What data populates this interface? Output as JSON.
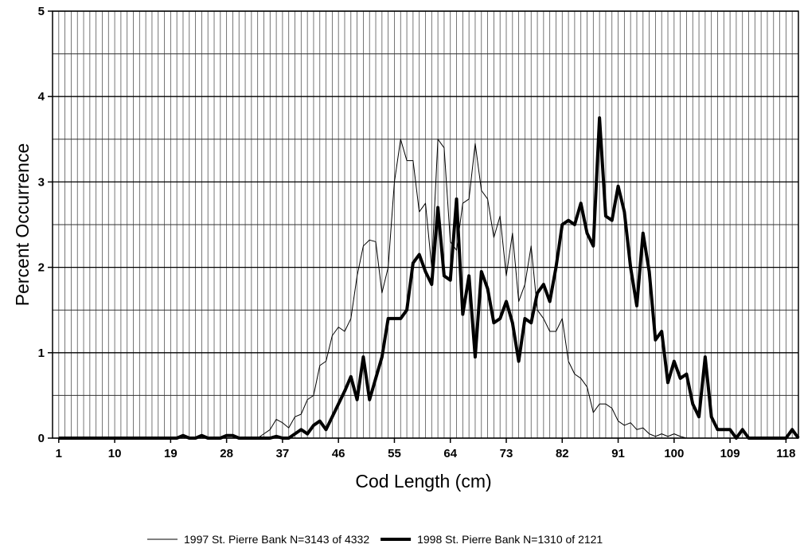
{
  "chart_data": {
    "type": "line",
    "xlabel": "Cod Length (cm)",
    "ylabel": "Percent Occurrence",
    "x": [
      1,
      2,
      3,
      4,
      5,
      6,
      7,
      8,
      9,
      10,
      11,
      12,
      13,
      14,
      15,
      16,
      17,
      18,
      19,
      20,
      21,
      22,
      23,
      24,
      25,
      26,
      27,
      28,
      29,
      30,
      31,
      32,
      33,
      34,
      35,
      36,
      37,
      38,
      39,
      40,
      41,
      42,
      43,
      44,
      45,
      46,
      47,
      48,
      49,
      50,
      51,
      52,
      53,
      54,
      55,
      56,
      57,
      58,
      59,
      60,
      61,
      62,
      63,
      64,
      65,
      66,
      67,
      68,
      69,
      70,
      71,
      72,
      73,
      74,
      75,
      76,
      77,
      78,
      79,
      80,
      81,
      82,
      83,
      84,
      85,
      86,
      87,
      88,
      89,
      90,
      91,
      92,
      93,
      94,
      95,
      96,
      97,
      98,
      99,
      100,
      101,
      102,
      103,
      104,
      105,
      106,
      107,
      108,
      109,
      110,
      111,
      112,
      113,
      114,
      115,
      116,
      117,
      118,
      119,
      120
    ],
    "series": [
      {
        "name": "1997 St. Pierre Bank N=3143 of 4332",
        "color": "#000000",
        "width": 1,
        "values": [
          0,
          0,
          0,
          0,
          0,
          0,
          0,
          0,
          0,
          0,
          0,
          0,
          0,
          0,
          0,
          0,
          0,
          0,
          0,
          0,
          0,
          0,
          0,
          0,
          0,
          0,
          0,
          0,
          0,
          0,
          0,
          0,
          0,
          0.05,
          0.1,
          0.22,
          0.18,
          0.12,
          0.25,
          0.28,
          0.45,
          0.5,
          0.85,
          0.9,
          1.2,
          1.3,
          1.25,
          1.4,
          1.9,
          2.25,
          2.32,
          2.3,
          1.7,
          2.0,
          3.0,
          3.5,
          3.25,
          3.25,
          2.65,
          2.75,
          2.0,
          3.5,
          3.4,
          2.3,
          2.2,
          2.75,
          2.8,
          3.45,
          2.9,
          2.8,
          2.35,
          2.6,
          1.9,
          2.4,
          1.6,
          1.8,
          2.25,
          1.5,
          1.4,
          1.25,
          1.25,
          1.4,
          0.9,
          0.75,
          0.7,
          0.6,
          0.3,
          0.4,
          0.4,
          0.35,
          0.2,
          0.15,
          0.18,
          0.1,
          0.12,
          0.05,
          0.02,
          0.05,
          0.02,
          0.05,
          0.02,
          0,
          0,
          0,
          0,
          0,
          0,
          0,
          0,
          0,
          0,
          0,
          0,
          0,
          0,
          0,
          0,
          0,
          0,
          0
        ]
      },
      {
        "name": "1998 St. Pierre Bank N=1310 of 2121",
        "color": "#000000",
        "width": 4,
        "values": [
          0,
          0,
          0,
          0,
          0,
          0,
          0,
          0,
          0,
          0,
          0,
          0,
          0,
          0,
          0,
          0,
          0,
          0,
          0,
          0,
          0.03,
          0,
          0,
          0.03,
          0,
          0,
          0,
          0.03,
          0.03,
          0,
          0,
          0,
          0,
          0,
          0,
          0.02,
          0,
          0,
          0.05,
          0.1,
          0.05,
          0.15,
          0.2,
          0.1,
          0.25,
          0.4,
          0.55,
          0.72,
          0.45,
          0.95,
          0.45,
          0.7,
          0.95,
          1.4,
          1.4,
          1.4,
          1.5,
          2.05,
          2.15,
          1.95,
          1.8,
          2.7,
          1.9,
          1.85,
          2.8,
          1.45,
          1.9,
          0.95,
          1.95,
          1.75,
          1.35,
          1.4,
          1.6,
          1.35,
          0.9,
          1.4,
          1.35,
          1.7,
          1.8,
          1.6,
          2.0,
          2.5,
          2.55,
          2.5,
          2.75,
          2.4,
          2.25,
          3.75,
          2.6,
          2.55,
          2.95,
          2.65,
          2.0,
          1.55,
          2.4,
          1.95,
          1.15,
          1.25,
          0.65,
          0.9,
          0.7,
          0.75,
          0.4,
          0.25,
          0.95,
          0.25,
          0.1,
          0.1,
          0.1,
          0,
          0.1,
          0,
          0,
          0,
          0,
          0,
          0,
          0,
          0.1,
          0
        ]
      }
    ],
    "xlim": [
      0,
      120
    ],
    "ylim": [
      0,
      5
    ],
    "xticks": [
      1,
      10,
      19,
      28,
      37,
      46,
      55,
      64,
      73,
      82,
      91,
      100,
      109,
      118
    ],
    "yticks": [
      0,
      1,
      2,
      3,
      4,
      5
    ],
    "grid": true,
    "legend": "bottom"
  }
}
